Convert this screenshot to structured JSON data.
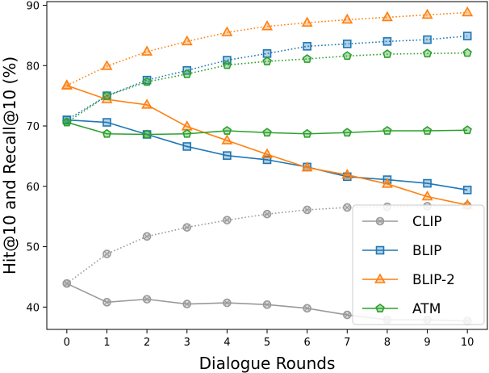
{
  "chart_data": {
    "type": "line",
    "title": "",
    "xlabel": "Dialogue Rounds",
    "ylabel": "Hit@10 and Recall@10 (%)",
    "x": [
      0,
      1,
      2,
      3,
      4,
      5,
      6,
      7,
      8,
      9,
      10
    ],
    "xlim": [
      -0.5,
      10.5
    ],
    "ylim": [
      36.3,
      90.6
    ],
    "yticks": [
      40,
      50,
      60,
      70,
      80,
      90
    ],
    "grid": false,
    "legend_position": "bottom-right",
    "series": [
      {
        "name": "CLIP",
        "color": "#9a9a9a",
        "marker": "circle-cross",
        "solid": [
          43.9,
          40.8,
          41.3,
          40.5,
          40.7,
          40.4,
          39.8,
          38.7,
          37.9,
          37.9,
          37.7
        ],
        "dotted": [
          43.9,
          48.8,
          51.7,
          53.2,
          54.4,
          55.4,
          56.1,
          56.5,
          56.6,
          56.7,
          56.8
        ]
      },
      {
        "name": "BLIP",
        "color": "#1f77b4",
        "marker": "square",
        "solid": [
          71.0,
          70.6,
          68.6,
          66.6,
          65.1,
          64.4,
          63.2,
          61.6,
          61.1,
          60.5,
          59.4
        ],
        "dotted": [
          71.0,
          75.0,
          77.6,
          79.2,
          80.9,
          82.0,
          83.2,
          83.6,
          84.0,
          84.3,
          84.9
        ]
      },
      {
        "name": "BLIP-2",
        "color": "#ff7f0e",
        "marker": "triangle",
        "solid": [
          76.7,
          74.4,
          73.5,
          69.9,
          67.6,
          65.3,
          63.1,
          61.9,
          60.4,
          58.3,
          56.9
        ],
        "dotted": [
          76.7,
          79.9,
          82.3,
          84.0,
          85.5,
          86.5,
          87.1,
          87.6,
          88.0,
          88.4,
          88.8
        ]
      },
      {
        "name": "ATM",
        "color": "#2ca02c",
        "marker": "pentagon",
        "solid": [
          70.6,
          68.7,
          68.6,
          68.7,
          69.2,
          68.9,
          68.7,
          68.9,
          69.2,
          69.2,
          69.3
        ],
        "dotted": [
          70.6,
          75.0,
          77.3,
          78.6,
          80.1,
          80.7,
          81.1,
          81.6,
          81.9,
          82.0,
          82.1
        ]
      }
    ]
  }
}
